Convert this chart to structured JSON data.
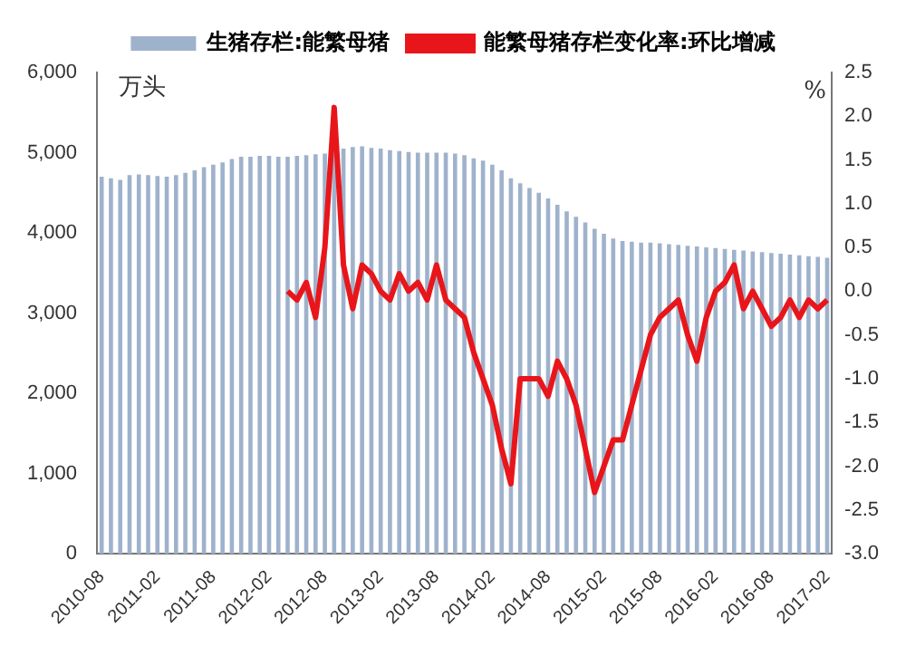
{
  "chart_data": {
    "type": "bar",
    "ylabel": "万头",
    "y2label": "%",
    "categories": [
      "2010-08",
      null,
      null,
      null,
      null,
      null,
      "2011-02",
      null,
      null,
      null,
      null,
      null,
      "2011-08",
      null,
      null,
      null,
      null,
      null,
      "2012-02",
      null,
      null,
      null,
      null,
      null,
      "2012-08",
      null,
      null,
      null,
      null,
      null,
      "2013-02",
      null,
      null,
      null,
      null,
      null,
      "2013-08",
      null,
      null,
      null,
      null,
      null,
      "2014-02",
      null,
      null,
      null,
      null,
      null,
      "2014-08",
      null,
      null,
      null,
      null,
      null,
      "2015-02",
      null,
      null,
      null,
      null,
      null,
      "2015-08",
      null,
      null,
      null,
      null,
      null,
      "2016-02",
      null,
      null,
      null,
      null,
      null,
      "2016-08",
      null,
      null,
      null,
      null,
      null,
      "2017-02"
    ],
    "series": [
      {
        "name": "生猪存栏:能繁母猪",
        "color": "#9fb2cc",
        "values": [
          4700,
          4680,
          4660,
          4720,
          4730,
          4720,
          4710,
          4700,
          4720,
          4750,
          4780,
          4820,
          4850,
          4880,
          4920,
          4950,
          4950,
          4960,
          4960,
          4950,
          4950,
          4960,
          4970,
          4980,
          4990,
          5000,
          5050,
          5070,
          5080,
          5060,
          5050,
          5030,
          5020,
          5010,
          5000,
          5000,
          5000,
          5000,
          4990,
          4970,
          4930,
          4900,
          4850,
          4780,
          4680,
          4620,
          4560,
          4500,
          4430,
          4350,
          4270,
          4200,
          4130,
          4050,
          3990,
          3930,
          3900,
          3890,
          3880,
          3880,
          3870,
          3860,
          3850,
          3840,
          3830,
          3820,
          3810,
          3800,
          3790,
          3780,
          3770,
          3760,
          3750,
          3740,
          3730,
          3720,
          3710,
          3700,
          3690
        ]
      },
      {
        "name": "能繁母猪存栏变化率:环比增减",
        "type": "line",
        "axis": "y2",
        "color": "#e8161b",
        "values": [
          null,
          null,
          null,
          null,
          null,
          null,
          null,
          null,
          null,
          null,
          null,
          null,
          null,
          null,
          null,
          null,
          null,
          null,
          null,
          null,
          0.0,
          -0.1,
          0.1,
          -0.3,
          0.5,
          2.1,
          0.3,
          -0.2,
          0.3,
          0.2,
          0.0,
          -0.1,
          0.2,
          0.0,
          0.1,
          -0.1,
          0.3,
          -0.1,
          -0.2,
          -0.3,
          -0.7,
          -1.0,
          -1.3,
          -1.8,
          -2.2,
          -1.0,
          -1.0,
          -1.0,
          -1.2,
          -0.8,
          -1.0,
          -1.3,
          -1.8,
          -2.3,
          -2.0,
          -1.7,
          -1.7,
          -1.3,
          -0.9,
          -0.5,
          -0.3,
          -0.2,
          -0.1,
          -0.5,
          -0.8,
          -0.3,
          0.0,
          0.1,
          0.3,
          -0.2,
          0.0,
          -0.2,
          -0.4,
          -0.3,
          -0.1,
          -0.3,
          -0.1,
          -0.2,
          -0.1
        ]
      }
    ],
    "ylim": [
      0,
      6000
    ],
    "yticks": [
      {
        "value": 0,
        "label": "0"
      },
      {
        "value": 1000,
        "label": "1,000"
      },
      {
        "value": 2000,
        "label": "2,000"
      },
      {
        "value": 3000,
        "label": "3,000"
      },
      {
        "value": 4000,
        "label": "4,000"
      },
      {
        "value": 5000,
        "label": "5,000"
      },
      {
        "value": 6000,
        "label": "6,000"
      }
    ],
    "y2lim": [
      -3.0,
      2.5
    ],
    "y2ticks": [
      {
        "value": -3,
        "label": "-3.0"
      },
      {
        "value": -2.5,
        "label": "-2.5"
      },
      {
        "value": -2,
        "label": "-2.0"
      },
      {
        "value": -1.5,
        "label": "-1.5"
      },
      {
        "value": -1,
        "label": "-1.0"
      },
      {
        "value": -0.5,
        "label": "-0.5"
      },
      {
        "value": 0,
        "label": "0.0"
      },
      {
        "value": 0.5,
        "label": "0.5"
      },
      {
        "value": 1,
        "label": "1.0"
      },
      {
        "value": 1.5,
        "label": "1.5"
      },
      {
        "value": 2,
        "label": "2.0"
      },
      {
        "value": 2.5,
        "label": "2.5"
      }
    ],
    "legend": "top",
    "grid": false,
    "marker": "none",
    "line_style": "solid"
  }
}
